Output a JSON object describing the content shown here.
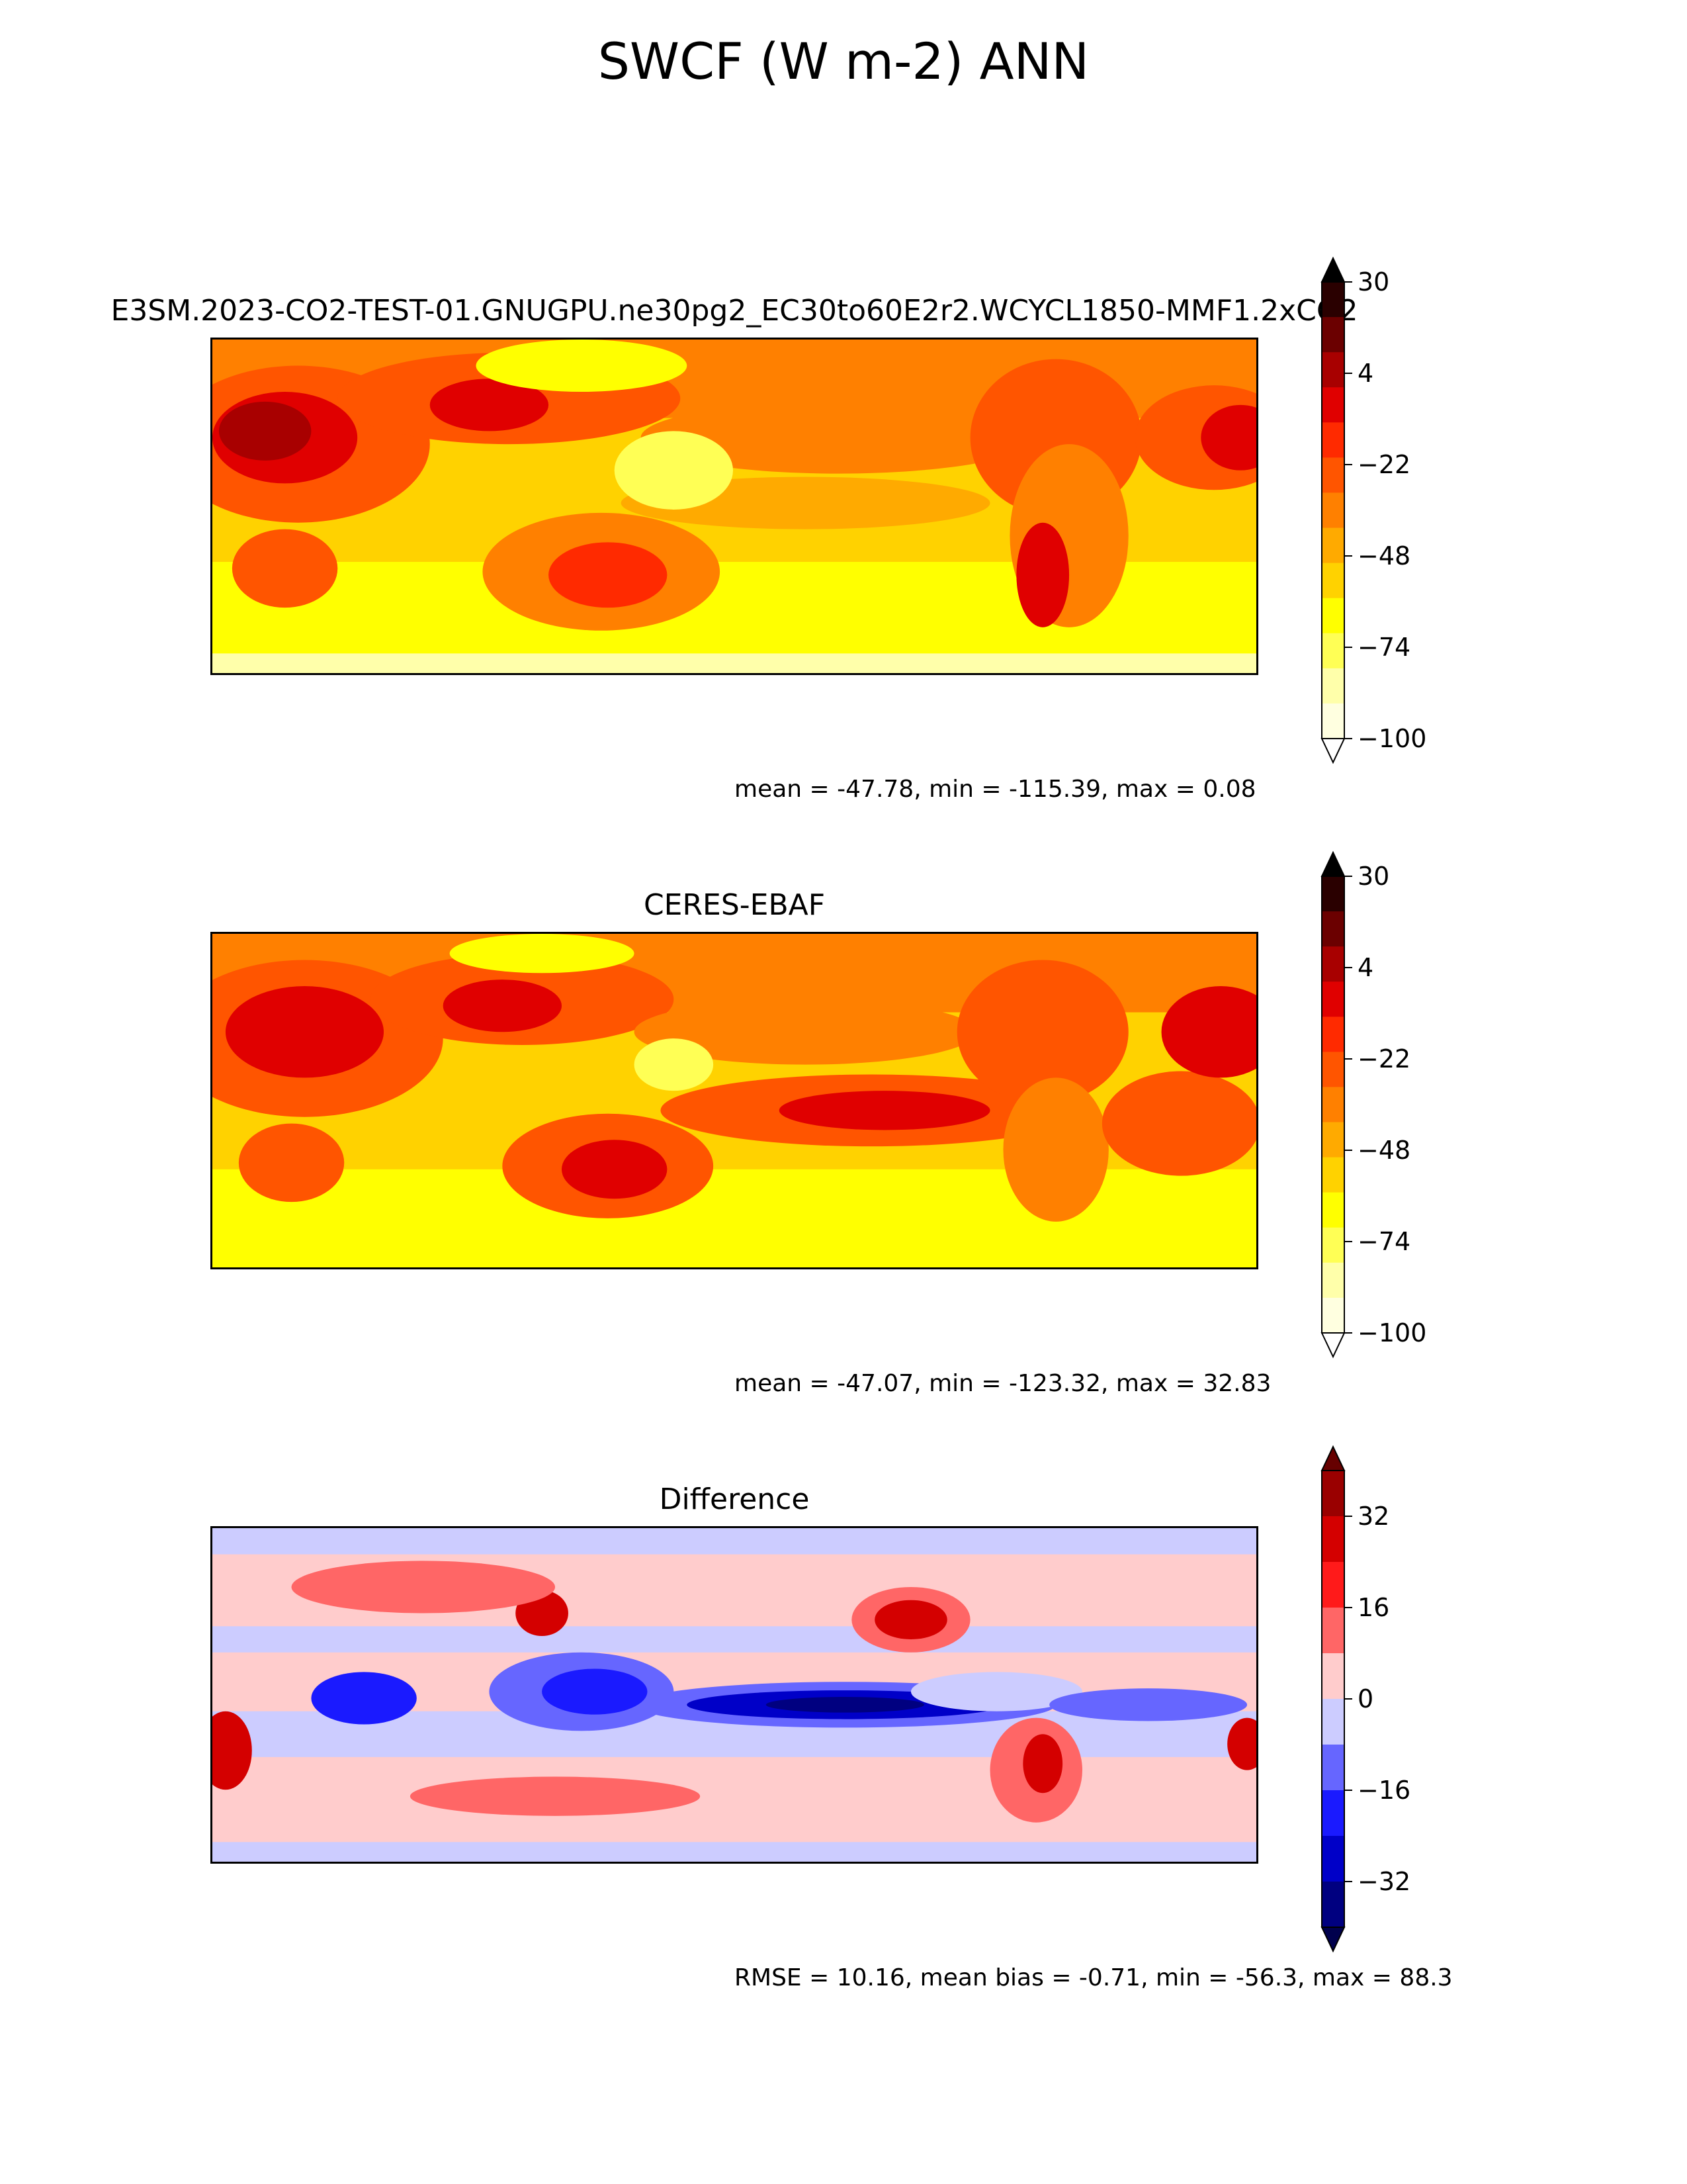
{
  "figure": {
    "title": "SWCF (W m-2) ANN"
  },
  "panels": [
    {
      "title": "E3SM.2023-CO2-TEST-01.GNUGPU.ne30pg2_EC30to60E2r2.WCYCL1850-MMF1.2xCO2",
      "stats": "mean = -47.78, min = -115.39, max = 0.08",
      "colorbar": {
        "ticks": [
          "30",
          "4",
          "−22",
          "−48",
          "−74",
          "−100"
        ],
        "colors": [
          "#2a0000",
          "#6b0000",
          "#a80000",
          "#e00000",
          "#ff2a00",
          "#ff5500",
          "#ff8000",
          "#ffaa00",
          "#ffd200",
          "#ffff00",
          "#ffff55",
          "#ffffaa",
          "#ffffe0"
        ],
        "extend_top": "#000000",
        "extend_bottom": "#ffffff"
      }
    },
    {
      "title": "CERES-EBAF",
      "stats": "mean = -47.07, min = -123.32, max = 32.83",
      "colorbar": {
        "ticks": [
          "30",
          "4",
          "−22",
          "−48",
          "−74",
          "−100"
        ],
        "colors": [
          "#2a0000",
          "#6b0000",
          "#a80000",
          "#e00000",
          "#ff2a00",
          "#ff5500",
          "#ff8000",
          "#ffaa00",
          "#ffd200",
          "#ffff00",
          "#ffff55",
          "#ffffaa",
          "#ffffe0"
        ],
        "extend_top": "#000000",
        "extend_bottom": "#ffffff"
      }
    },
    {
      "title": "Difference",
      "stats": "RMSE = 10.16, mean bias = -0.71, min = -56.3, max = 88.3",
      "colorbar": {
        "ticks": [
          "32",
          "16",
          "0",
          "−16",
          "−32"
        ],
        "colors": [
          "#9a0000",
          "#d40000",
          "#ff1a1a",
          "#ff6666",
          "#ffcccc",
          "#ccccff",
          "#6666ff",
          "#1a1aff",
          "#0000c8",
          "#000080"
        ],
        "extend_top": "#660000",
        "extend_bottom": "#00004d"
      }
    }
  ]
}
